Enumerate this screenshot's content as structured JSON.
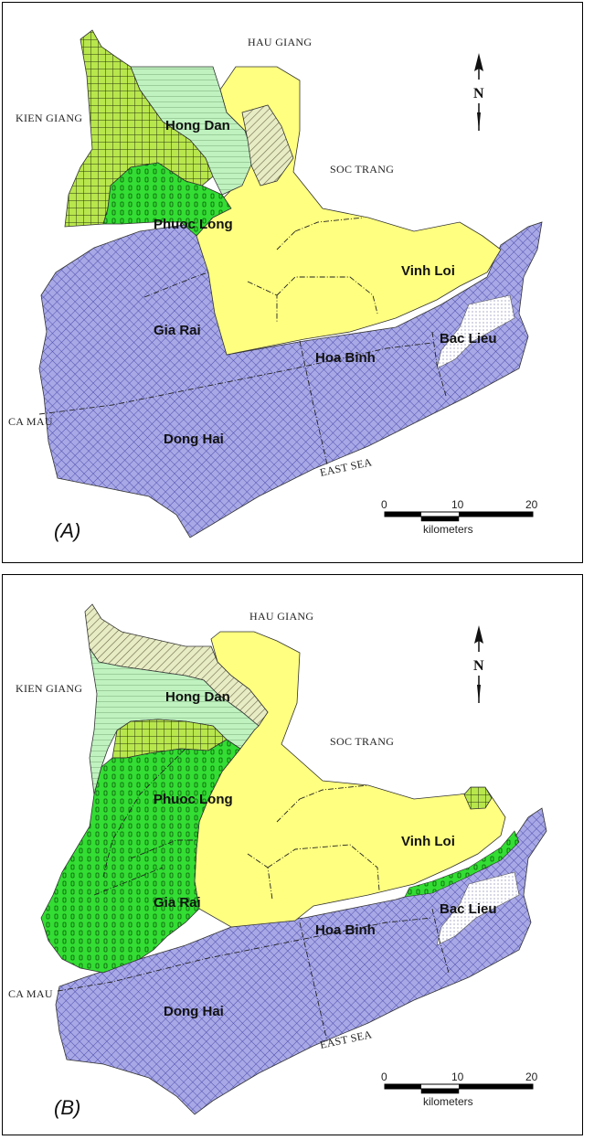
{
  "panels": [
    {
      "id": "A",
      "panel_label": "(A)",
      "neighbors": {
        "north": "HAU GIANG",
        "west": "KIEN GIANG",
        "east": "SOC TRANG",
        "southwest": "CA MAU",
        "sea": "EAST SEA"
      },
      "districts": [
        "Hong Dan",
        "Phuoc Long",
        "Vinh Loi",
        "Gia Rai",
        "Hoa Binh",
        "Bac Lieu",
        "Dong Hai"
      ],
      "north_label": "N",
      "scale": {
        "ticks": [
          "0",
          "10",
          "20"
        ],
        "unit": "kilometers"
      }
    },
    {
      "id": "B",
      "panel_label": "(B)",
      "neighbors": {
        "north": "HAU GIANG",
        "west": "KIEN GIANG",
        "east": "SOC TRANG",
        "southwest": "CA MAU",
        "sea": "EAST SEA"
      },
      "districts": [
        "Hong Dan",
        "Phuoc Long",
        "Vinh Loi",
        "Gia Rai",
        "Hoa Binh",
        "Bac Lieu",
        "Dong Hai"
      ],
      "north_label": "N",
      "scale": {
        "ticks": [
          "0",
          "10",
          "20"
        ],
        "unit": "kilometers"
      }
    }
  ],
  "colors": {
    "yellow_zone": "#ffff80",
    "blue_zone": "#a8a8e6",
    "green_zone": "#33dd33",
    "light_green_zone": "#bff2bf",
    "olive_grid_zone": "#b8e64d",
    "hatch_zone": "#e8ecc4"
  }
}
